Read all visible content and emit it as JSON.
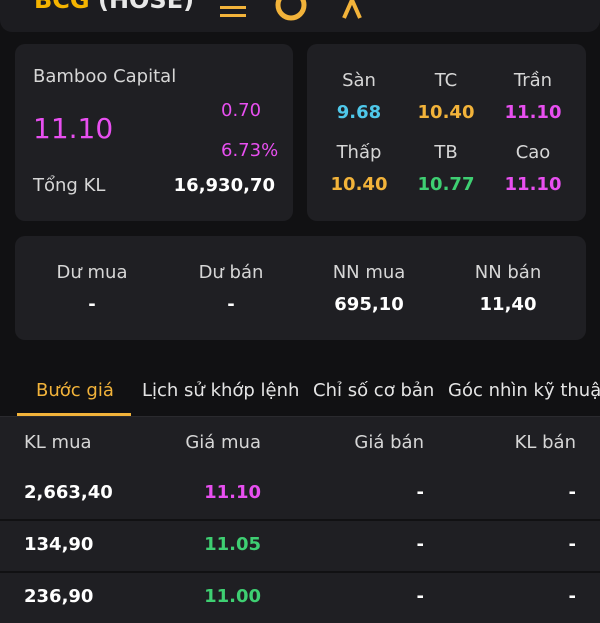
{
  "header": {
    "symbol": "BCG",
    "exchange": "(HOSE)"
  },
  "summary": {
    "company": "Bamboo Capital",
    "price": "11.10",
    "change": "0.70",
    "change_pct": "6.73%",
    "volume_label": "Tổng KL",
    "volume_value": "16,930,70"
  },
  "prices": {
    "floor_label": "Sàn",
    "floor": "9.68",
    "ref_label": "TC",
    "ref": "10.40",
    "ceiling_label": "Trần",
    "ceiling": "11.10",
    "low_label": "Thấp",
    "low": "10.40",
    "avg_label": "TB",
    "avg": "10.77",
    "high_label": "Cao",
    "high": "11.10"
  },
  "flow": {
    "bid_surplus_label": "Dư mua",
    "bid_surplus": "-",
    "ask_surplus_label": "Dư bán",
    "ask_surplus": "-",
    "foreign_buy_label": "NN mua",
    "foreign_buy": "695,10",
    "foreign_sell_label": "NN bán",
    "foreign_sell": "11,40"
  },
  "tabs": [
    {
      "label": "Bước giá",
      "active": true
    },
    {
      "label": "Lịch sử khớp lệnh"
    },
    {
      "label": "Chỉ số cơ bản"
    },
    {
      "label": "Góc nhìn kỹ thuật"
    }
  ],
  "table": {
    "headers": [
      "KL mua",
      "Giá mua",
      "Giá bán",
      "KL bán"
    ],
    "rows": [
      {
        "bid_vol": "2,663,40",
        "bid_price": "11.10",
        "ask_price": "-",
        "ask_vol": "-"
      },
      {
        "bid_vol": "134,90",
        "bid_price": "11.05",
        "ask_price": "-",
        "ask_vol": "-"
      },
      {
        "bid_vol": "236,90",
        "bid_price": "11.00",
        "ask_price": "-",
        "ask_vol": "-"
      }
    ]
  },
  "colors": {
    "ceiling": "#e84ff0",
    "reference": "#f2b33a",
    "floor": "#4fc8ea",
    "up": "#3ecf72",
    "accent": "#f2b33a",
    "card": "#1f1f23",
    "background": "#111113"
  },
  "icons": [
    "menu-icon",
    "info-icon",
    "alert-icon"
  ]
}
